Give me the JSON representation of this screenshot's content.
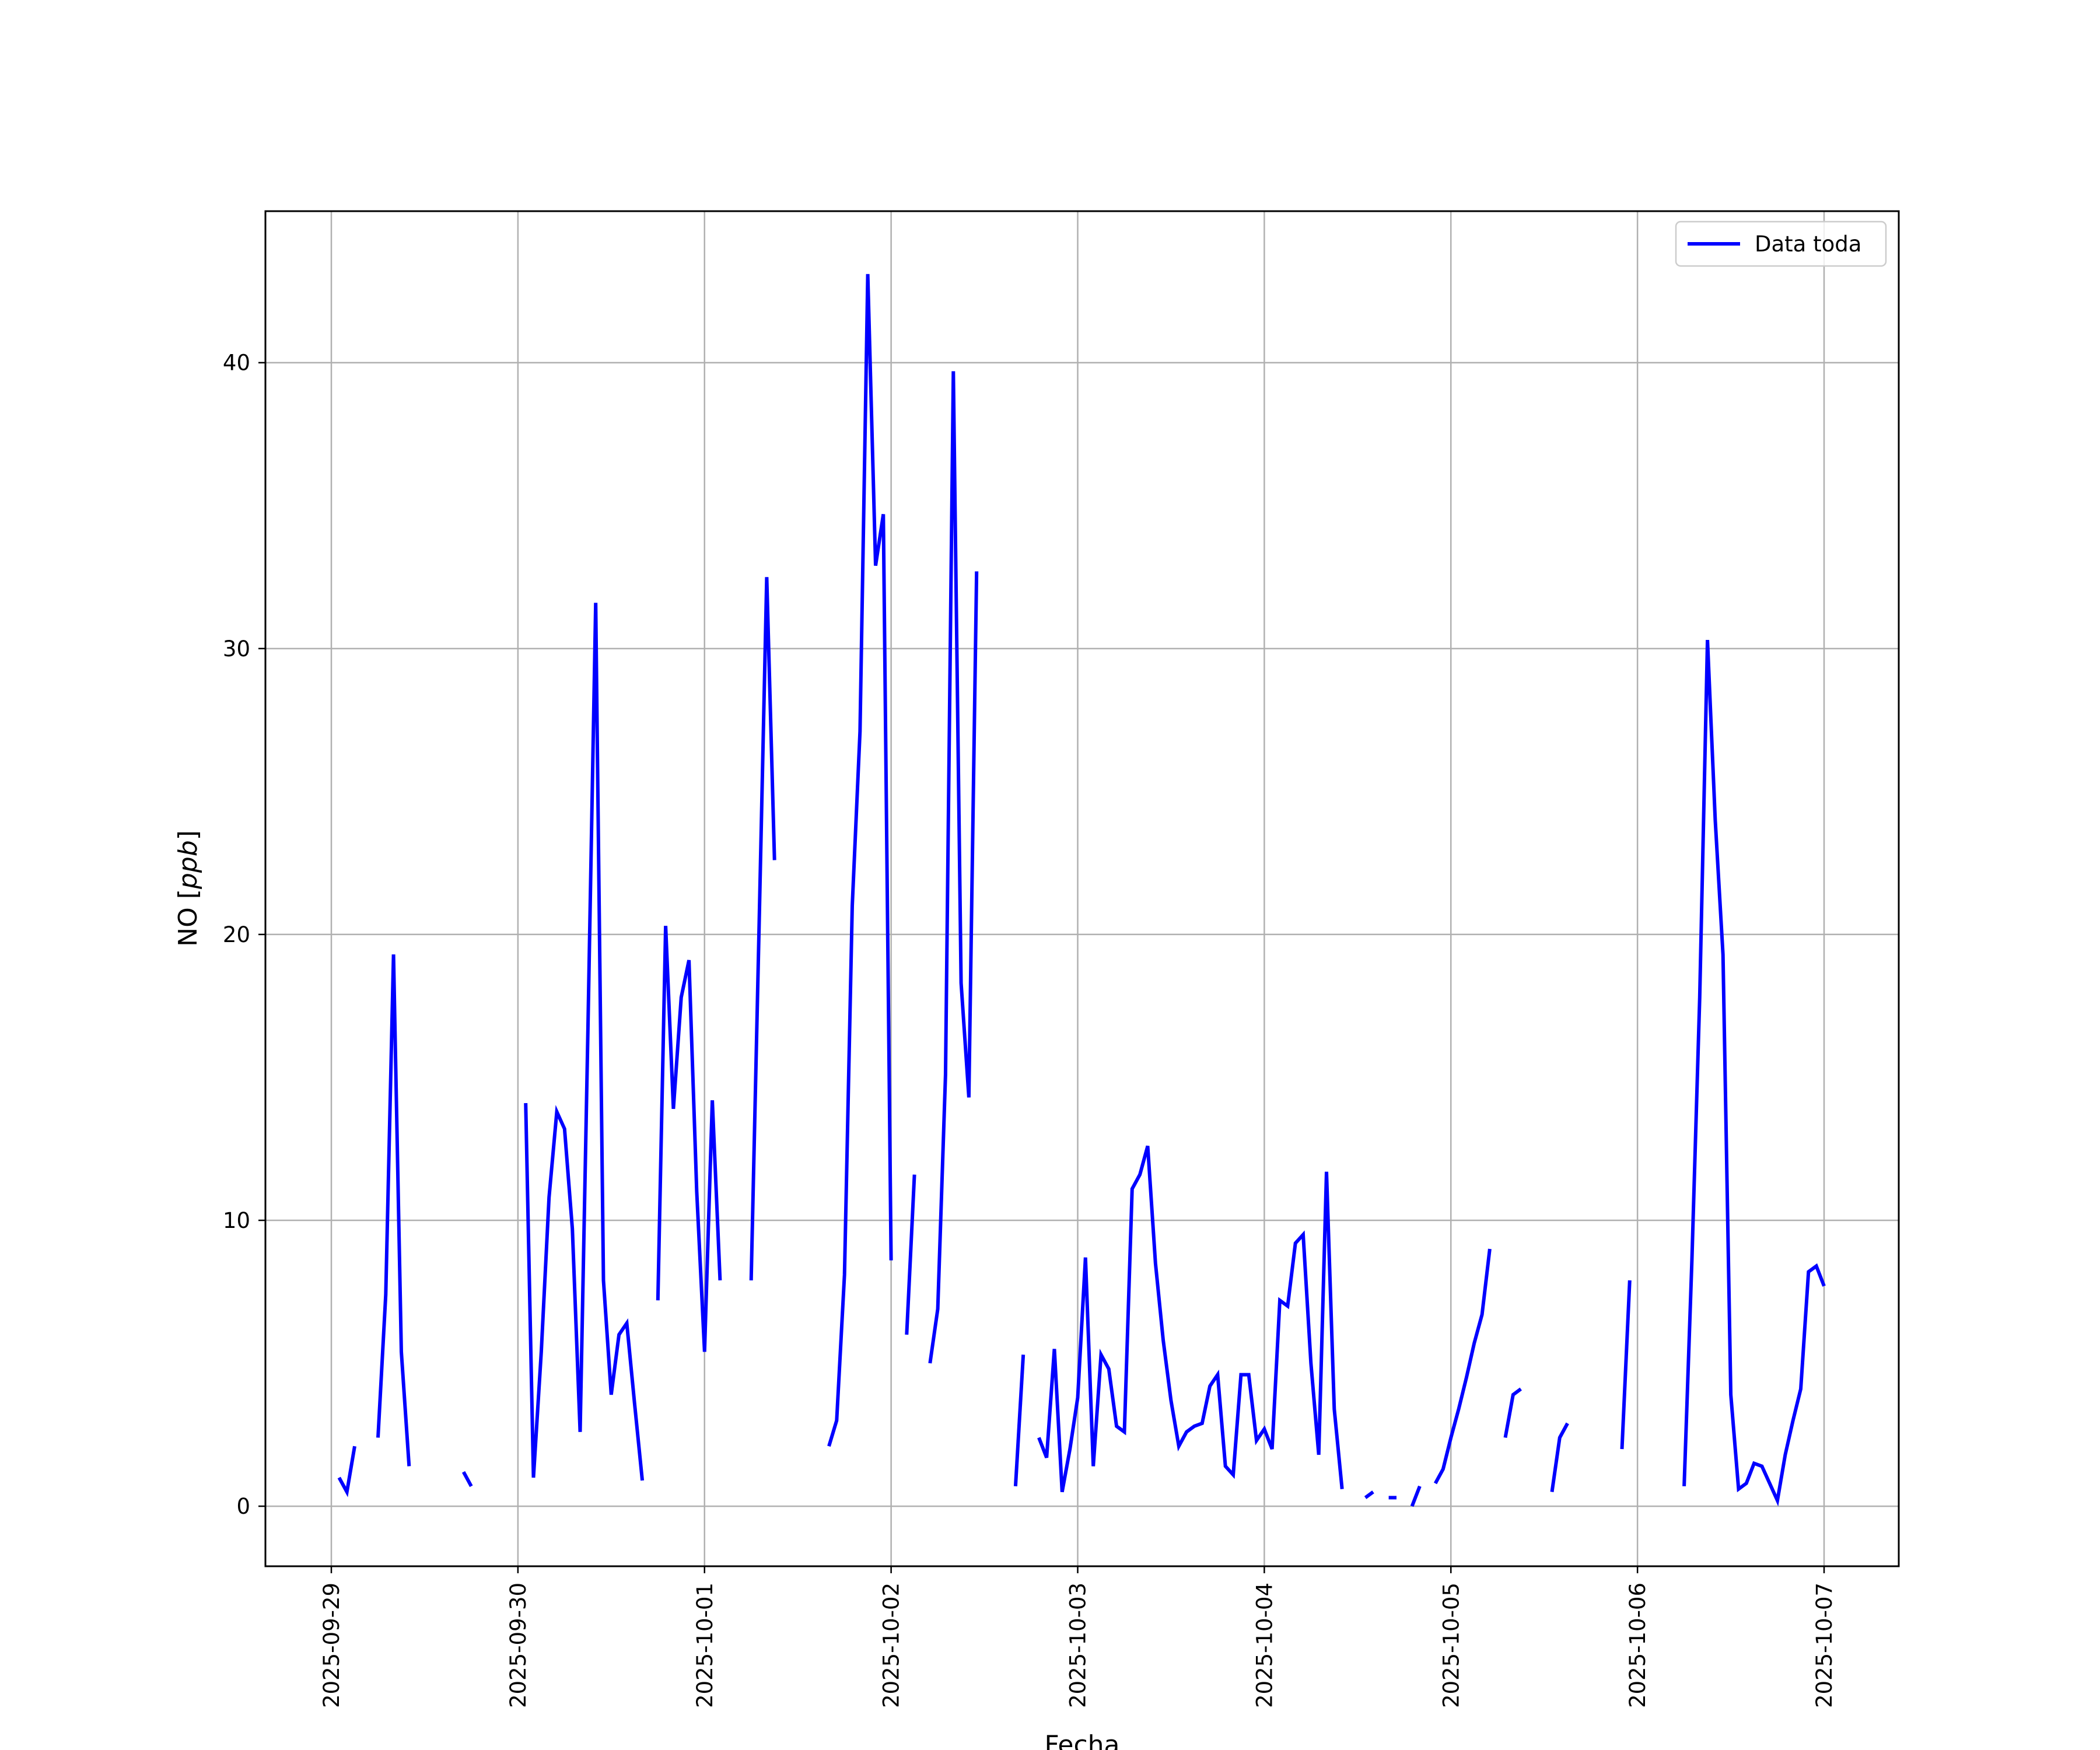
{
  "chart_data": {
    "type": "line",
    "title": "",
    "xlabel": "Fecha",
    "ylabel_prefix": "NO [",
    "ylabel_unit": "ppb",
    "ylabel_suffix": "]",
    "x_type": "datetime",
    "xlim": [
      "2025-09-28T12:00",
      "2025-10-07T11:00"
    ],
    "ylim": [
      -2.1,
      45.3
    ],
    "x_ticks": [
      "2025-09-29",
      "2025-09-30",
      "2025-10-01",
      "2025-10-02",
      "2025-10-03",
      "2025-10-04",
      "2025-10-05",
      "2025-10-06",
      "2025-10-07"
    ],
    "y_ticks": [
      0,
      10,
      20,
      30,
      40
    ],
    "grid": true,
    "legend": {
      "position": "top-right",
      "entries": [
        "Data toda"
      ]
    },
    "series": [
      {
        "name": "Data toda",
        "color": "#0000ff",
        "segments": [
          [
            [
              "2025-09-29T01:00",
              1.0
            ],
            [
              "2025-09-29T02:00",
              0.5
            ],
            [
              "2025-09-29T03:00",
              2.1
            ]
          ],
          [
            [
              "2025-09-29T06:00",
              2.4
            ],
            [
              "2025-09-29T07:00",
              7.4
            ],
            [
              "2025-09-29T08:00",
              19.3
            ],
            [
              "2025-09-29T09:00",
              5.4
            ],
            [
              "2025-09-29T10:00",
              1.4
            ]
          ],
          [
            [
              "2025-09-29T17:00",
              1.2
            ],
            [
              "2025-09-29T18:00",
              0.7
            ]
          ],
          [
            [
              "2025-09-30T01:00",
              14.1
            ],
            [
              "2025-09-30T02:00",
              1.0
            ],
            [
              "2025-09-30T03:00",
              5.4
            ],
            [
              "2025-09-30T04:00",
              10.8
            ],
            [
              "2025-09-30T05:00",
              13.8
            ],
            [
              "2025-09-30T06:00",
              13.2
            ],
            [
              "2025-09-30T07:00",
              9.7
            ],
            [
              "2025-09-30T08:00",
              2.6
            ],
            [
              "2025-09-30T09:00",
              16.6
            ],
            [
              "2025-09-30T10:00",
              31.6
            ],
            [
              "2025-09-30T11:00",
              7.9
            ],
            [
              "2025-09-30T12:00",
              3.9
            ],
            [
              "2025-09-30T13:00",
              6.0
            ],
            [
              "2025-09-30T14:00",
              6.4
            ],
            [
              "2025-09-30T15:00",
              3.6
            ],
            [
              "2025-09-30T16:00",
              0.9
            ]
          ],
          [
            [
              "2025-09-30T18:00",
              7.2
            ],
            [
              "2025-09-30T19:00",
              20.3
            ],
            [
              "2025-09-30T20:00",
              13.9
            ],
            [
              "2025-09-30T21:00",
              17.8
            ],
            [
              "2025-09-30T22:00",
              19.1
            ],
            [
              "2025-09-30T23:00",
              11.0
            ],
            [
              "2025-10-01T00:00",
              5.4
            ],
            [
              "2025-10-01T01:00",
              14.2
            ],
            [
              "2025-10-01T02:00",
              7.9
            ]
          ],
          [
            [
              "2025-10-01T06:00",
              7.9
            ],
            [
              "2025-10-01T07:00",
              20.0
            ],
            [
              "2025-10-01T08:00",
              32.5
            ],
            [
              "2025-10-01T09:00",
              22.6
            ]
          ],
          [
            [
              "2025-10-01T16:00",
              2.1
            ],
            [
              "2025-10-01T17:00",
              3.0
            ],
            [
              "2025-10-01T18:00",
              8.1
            ],
            [
              "2025-10-01T19:00",
              21.0
            ],
            [
              "2025-10-01T20:00",
              27.1
            ],
            [
              "2025-10-01T21:00",
              43.1
            ],
            [
              "2025-10-01T22:00",
              32.9
            ],
            [
              "2025-10-01T23:00",
              34.7
            ],
            [
              "2025-10-02T00:00",
              8.6
            ]
          ],
          [
            [
              "2025-10-02T02:00",
              6.0
            ],
            [
              "2025-10-02T03:00",
              11.6
            ]
          ],
          [
            [
              "2025-10-02T05:00",
              5.0
            ],
            [
              "2025-10-02T06:00",
              6.9
            ],
            [
              "2025-10-02T07:00",
              15.1
            ],
            [
              "2025-10-02T08:00",
              39.7
            ],
            [
              "2025-10-02T09:00",
              18.3
            ],
            [
              "2025-10-02T10:00",
              14.3
            ],
            [
              "2025-10-02T11:00",
              32.7
            ]
          ],
          [
            [
              "2025-10-02T16:00",
              0.7
            ],
            [
              "2025-10-02T17:00",
              5.3
            ]
          ],
          [
            [
              "2025-10-02T19:00",
              2.4
            ],
            [
              "2025-10-02T20:00",
              1.7
            ],
            [
              "2025-10-02T21:00",
              5.5
            ],
            [
              "2025-10-02T22:00",
              0.5
            ],
            [
              "2025-10-02T23:00",
              2.0
            ],
            [
              "2025-10-03T00:00",
              3.8
            ],
            [
              "2025-10-03T01:00",
              8.7
            ],
            [
              "2025-10-03T02:00",
              1.4
            ],
            [
              "2025-10-03T03:00",
              5.3
            ],
            [
              "2025-10-03T04:00",
              4.8
            ],
            [
              "2025-10-03T05:00",
              2.8
            ],
            [
              "2025-10-03T06:00",
              2.6
            ],
            [
              "2025-10-03T07:00",
              11.1
            ],
            [
              "2025-10-03T08:00",
              11.6
            ],
            [
              "2025-10-03T09:00",
              12.6
            ],
            [
              "2025-10-03T10:00",
              8.5
            ],
            [
              "2025-10-03T11:00",
              5.8
            ],
            [
              "2025-10-03T12:00",
              3.7
            ],
            [
              "2025-10-03T13:00",
              2.1
            ],
            [
              "2025-10-03T14:00",
              2.6
            ],
            [
              "2025-10-03T15:00",
              2.8
            ],
            [
              "2025-10-03T16:00",
              2.9
            ],
            [
              "2025-10-03T17:00",
              4.2
            ],
            [
              "2025-10-03T18:00",
              4.6
            ],
            [
              "2025-10-03T19:00",
              1.4
            ],
            [
              "2025-10-03T20:00",
              1.1
            ],
            [
              "2025-10-03T21:00",
              4.6
            ],
            [
              "2025-10-03T22:00",
              4.6
            ],
            [
              "2025-10-03T23:00",
              2.3
            ],
            [
              "2025-10-04T00:00",
              2.7
            ],
            [
              "2025-10-04T01:00",
              2.0
            ],
            [
              "2025-10-04T02:00",
              7.2
            ],
            [
              "2025-10-04T03:00",
              7.0
            ],
            [
              "2025-10-04T04:00",
              9.2
            ],
            [
              "2025-10-04T05:00",
              9.5
            ],
            [
              "2025-10-04T06:00",
              5.0
            ],
            [
              "2025-10-04T07:00",
              1.8
            ],
            [
              "2025-10-04T08:00",
              11.7
            ],
            [
              "2025-10-04T09:00",
              3.4
            ],
            [
              "2025-10-04T10:00",
              0.6
            ]
          ],
          [
            [
              "2025-10-04T13:00",
              0.3
            ],
            [
              "2025-10-04T14:00",
              0.5
            ]
          ],
          [
            [
              "2025-10-04T16:00",
              0.3
            ],
            [
              "2025-10-04T17:00",
              0.3
            ]
          ],
          [
            [
              "2025-10-04T19:00",
              0.0
            ],
            [
              "2025-10-04T20:00",
              0.7
            ]
          ],
          [
            [
              "2025-10-04T22:00",
              0.8
            ],
            [
              "2025-10-04T23:00",
              1.3
            ],
            [
              "2025-10-05T00:00",
              2.4
            ],
            [
              "2025-10-05T01:00",
              3.4
            ],
            [
              "2025-10-05T02:00",
              4.5
            ],
            [
              "2025-10-05T03:00",
              5.7
            ],
            [
              "2025-10-05T04:00",
              6.7
            ],
            [
              "2025-10-05T05:00",
              9.0
            ]
          ],
          [
            [
              "2025-10-05T07:00",
              2.4
            ],
            [
              "2025-10-05T08:00",
              3.9
            ],
            [
              "2025-10-05T09:00",
              4.1
            ]
          ],
          [
            [
              "2025-10-05T13:00",
              0.5
            ],
            [
              "2025-10-05T14:00",
              2.4
            ],
            [
              "2025-10-05T15:00",
              2.9
            ]
          ],
          [
            [
              "2025-10-05T22:00",
              2.0
            ],
            [
              "2025-10-05T23:00",
              7.9
            ]
          ],
          [
            [
              "2025-10-06T06:00",
              0.7
            ],
            [
              "2025-10-06T07:00",
              8.6
            ],
            [
              "2025-10-06T08:00",
              17.8
            ],
            [
              "2025-10-06T09:00",
              30.3
            ],
            [
              "2025-10-06T10:00",
              24.0
            ],
            [
              "2025-10-06T11:00",
              19.3
            ],
            [
              "2025-10-06T12:00",
              3.9
            ],
            [
              "2025-10-06T13:00",
              0.6
            ],
            [
              "2025-10-06T14:00",
              0.8
            ],
            [
              "2025-10-06T15:00",
              1.5
            ],
            [
              "2025-10-06T16:00",
              1.4
            ],
            [
              "2025-10-06T17:00",
              0.8
            ],
            [
              "2025-10-06T18:00",
              0.2
            ],
            [
              "2025-10-06T19:00",
              1.8
            ],
            [
              "2025-10-06T20:00",
              3.0
            ],
            [
              "2025-10-06T21:00",
              4.1
            ],
            [
              "2025-10-06T22:00",
              8.2
            ],
            [
              "2025-10-06T23:00",
              8.4
            ],
            [
              "2025-10-07T00:00",
              7.7
            ]
          ]
        ]
      }
    ]
  }
}
